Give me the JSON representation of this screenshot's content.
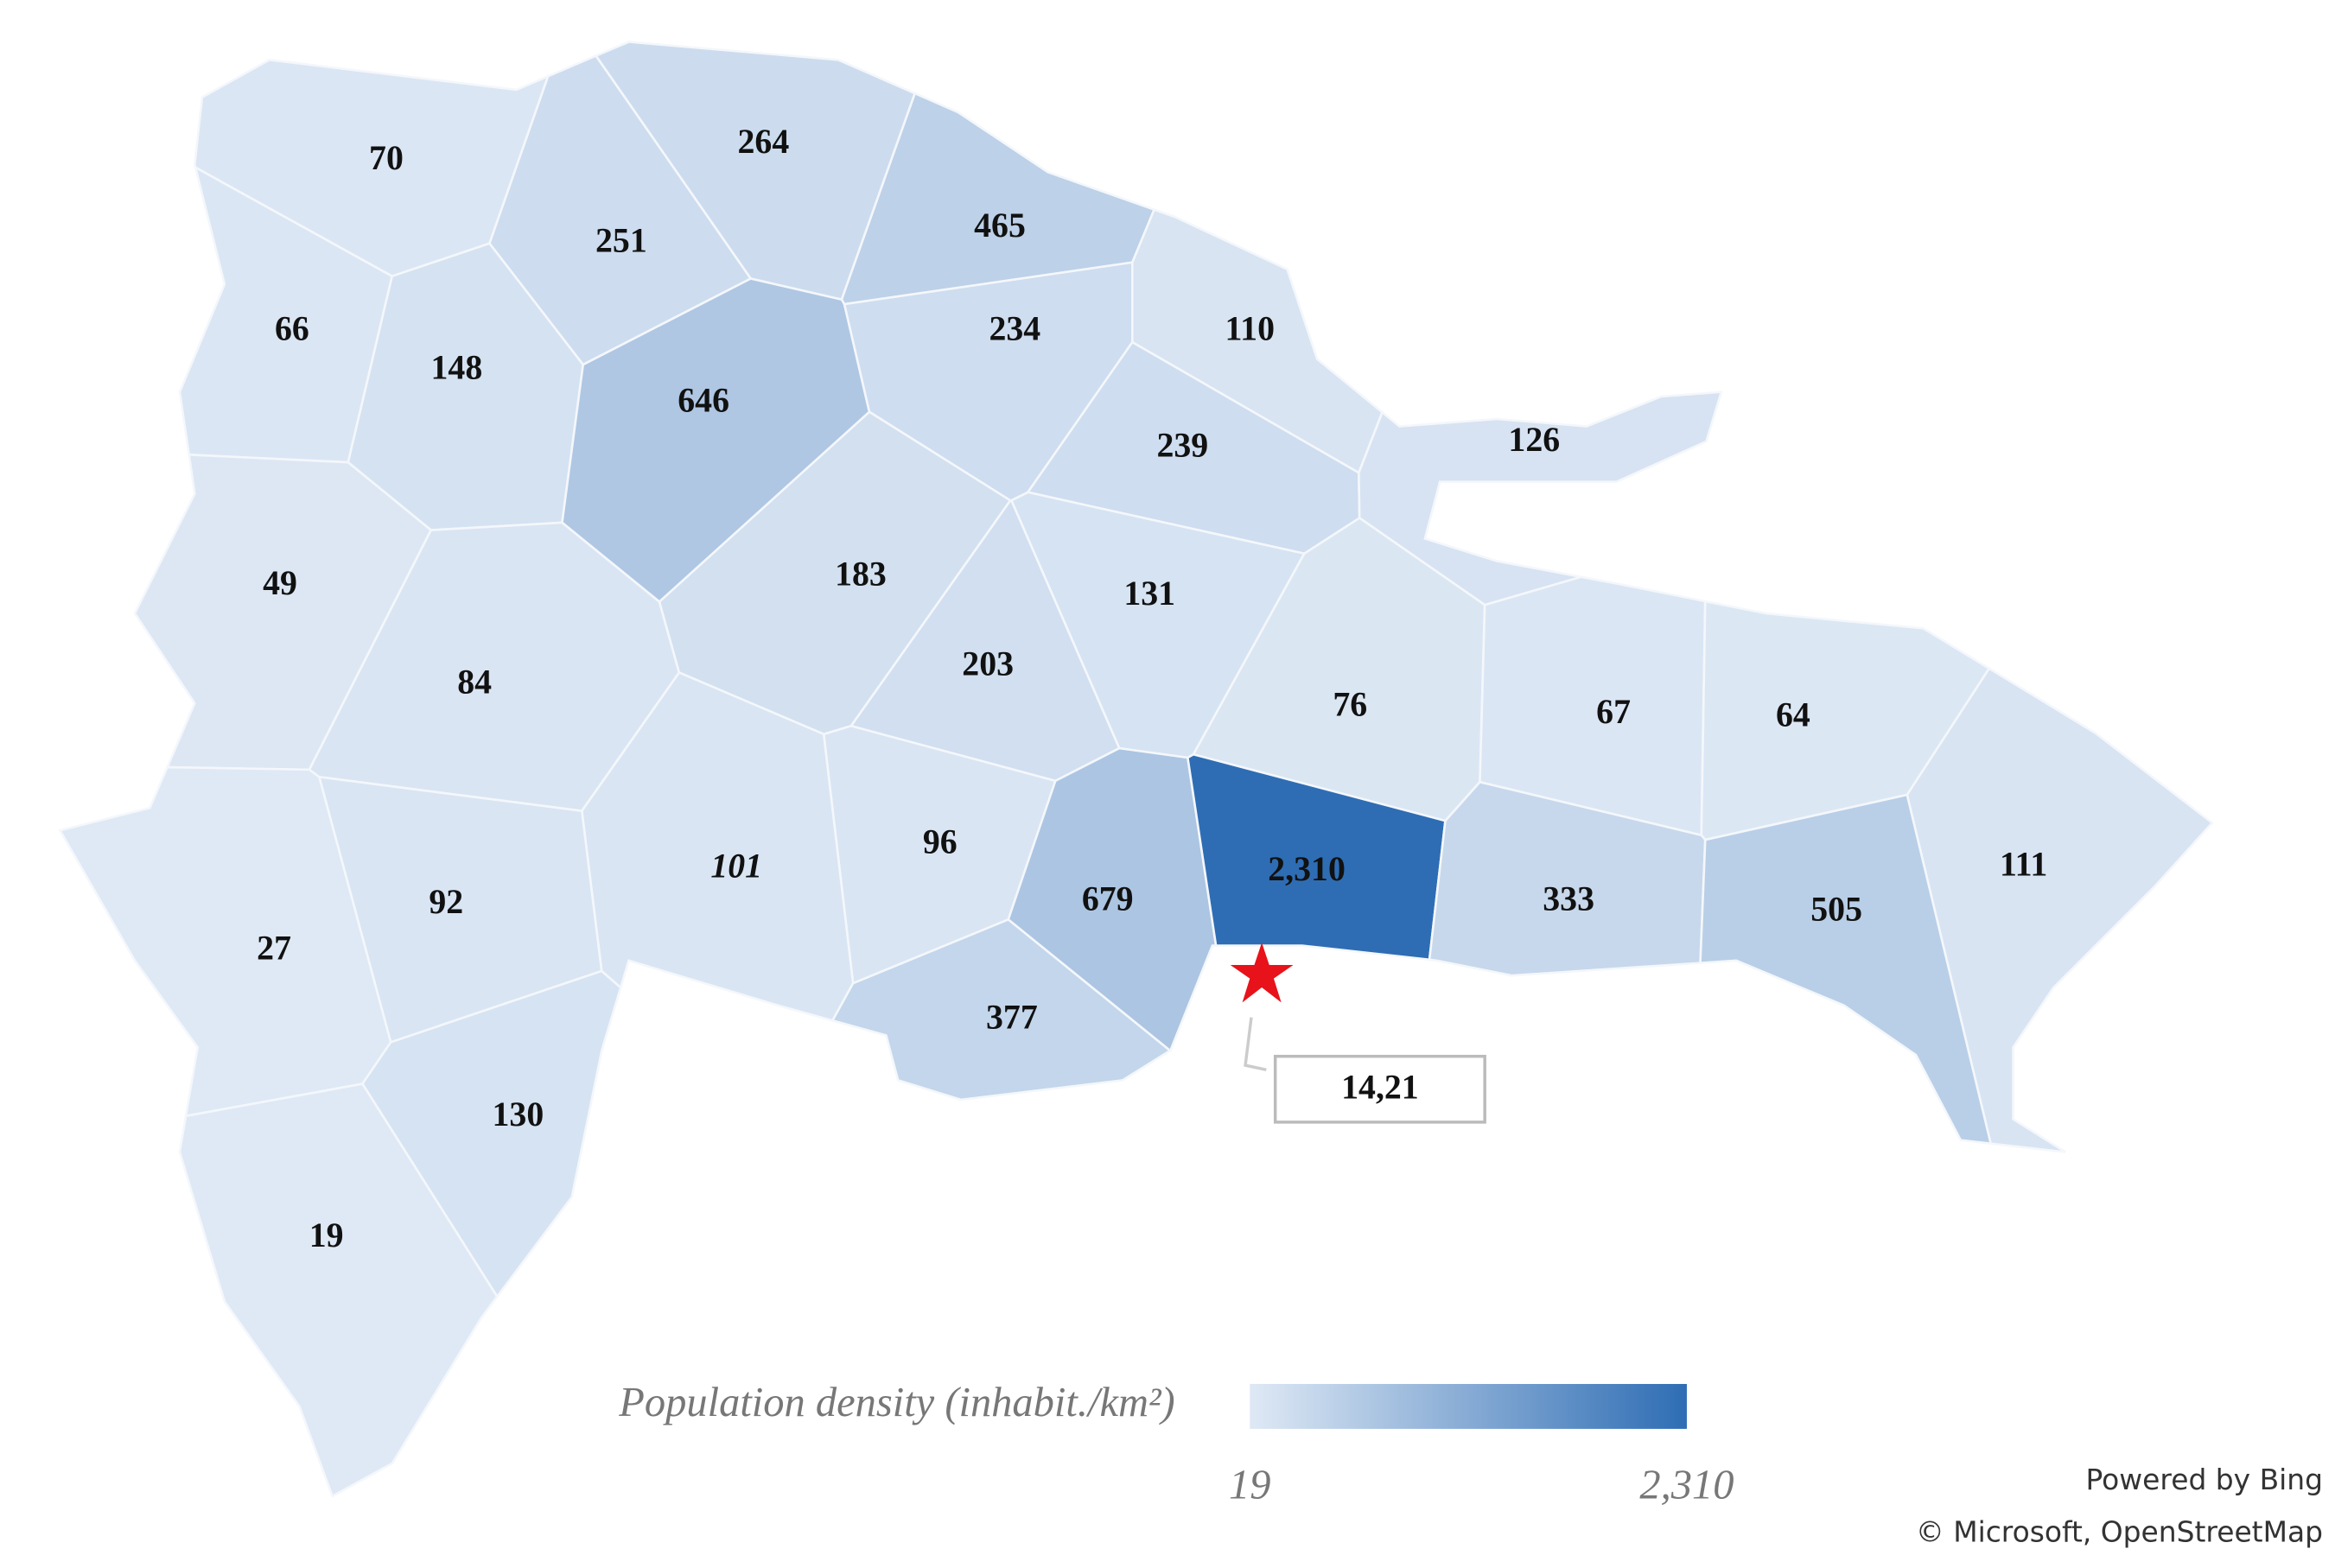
{
  "chart_data": {
    "type": "choropleth",
    "values": [
      70,
      264,
      251,
      465,
      66,
      148,
      646,
      234,
      110,
      239,
      126,
      49,
      84,
      183,
      131,
      203,
      76,
      67,
      64,
      96,
      101,
      92,
      27,
      679,
      2310,
      333,
      505,
      111,
      377,
      130,
      19
    ],
    "value_labels": [
      "70",
      "264",
      "251",
      "465",
      "66",
      "148",
      "646",
      "234",
      "110",
      "239",
      "126",
      "49",
      "84",
      "183",
      "131",
      "203",
      "76",
      "67",
      "64",
      "96",
      "101",
      "92",
      "27",
      "679",
      "2,310",
      "333",
      "505",
      "111",
      "377",
      "130",
      "19"
    ],
    "colors": [
      "#dfe9f5",
      "#2e6db4"
    ],
    "colorlim": [
      19,
      2310
    ],
    "colorticks": [
      19,
      {
        "value": 2310,
        "label": "2,310"
      }
    ],
    "legend_title": "Population density (inhabit./km²)",
    "annotation": "14,21",
    "attribution": [
      "Powered by Bing",
      "© Microsoft, OpenStreetMap"
    ]
  }
}
